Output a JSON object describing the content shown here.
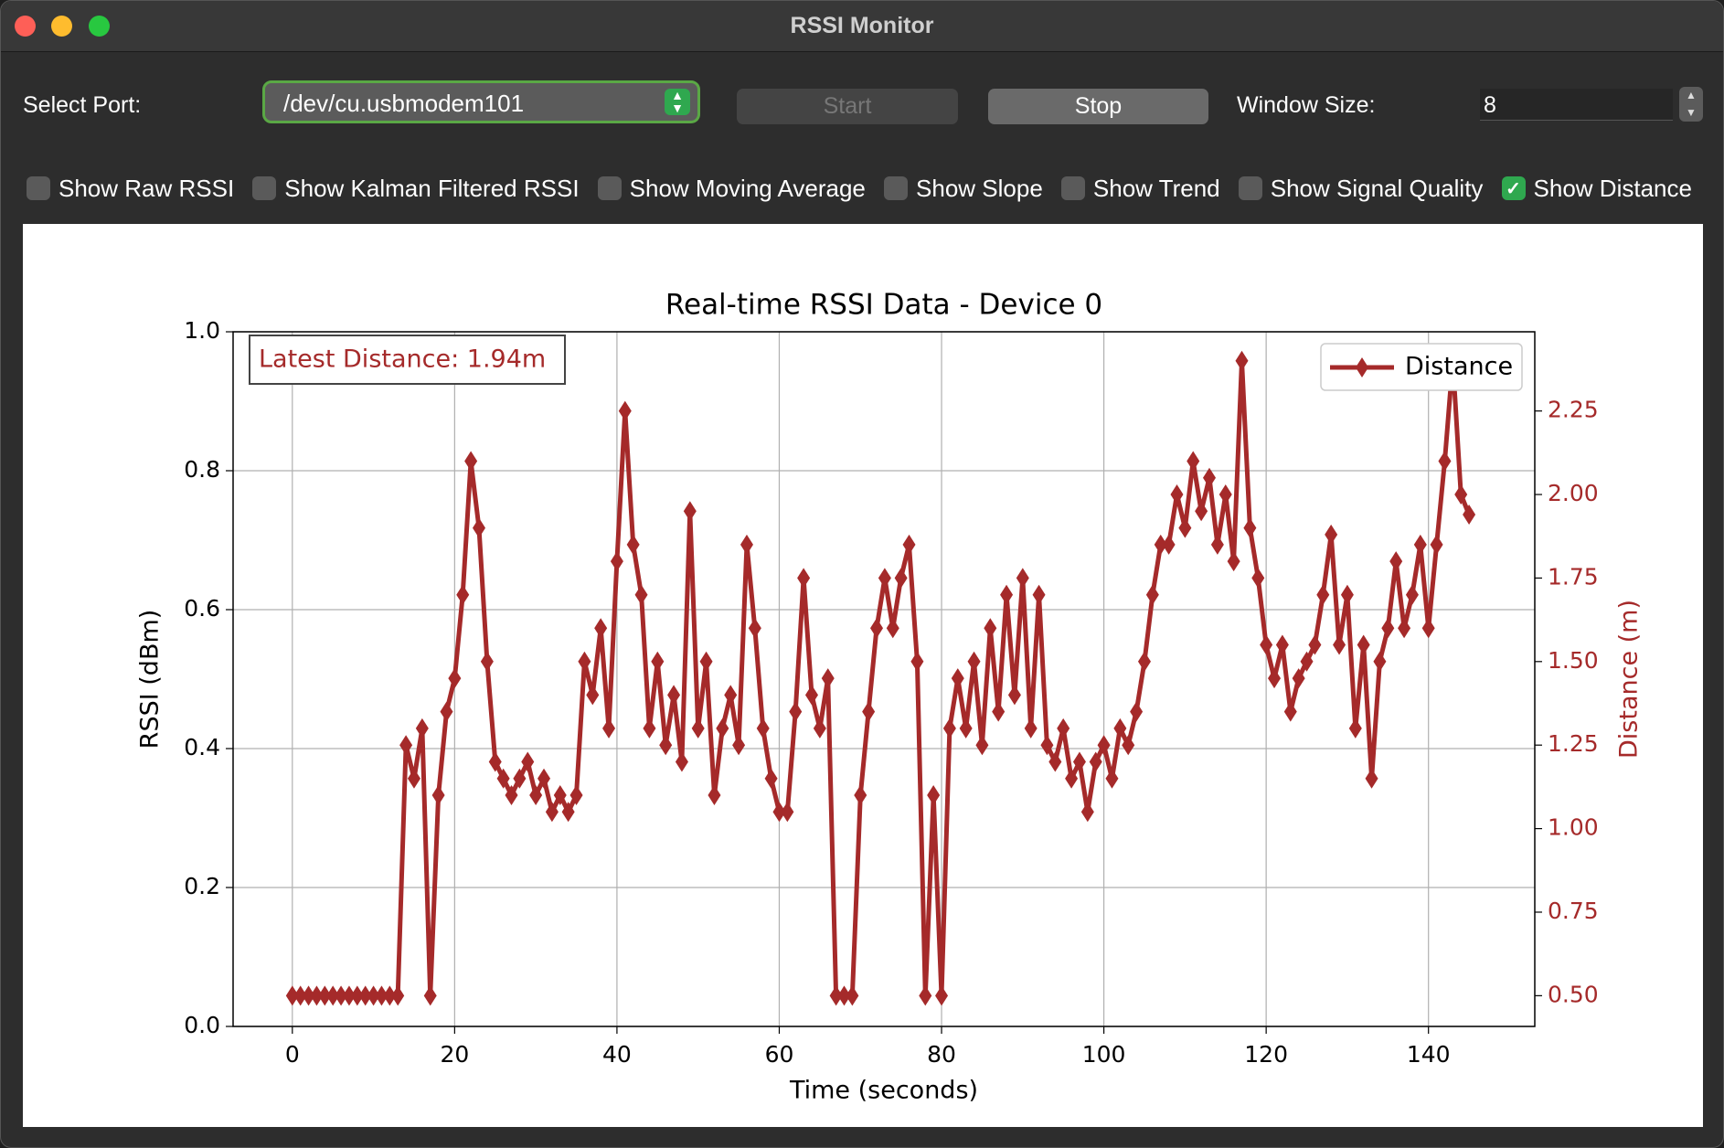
{
  "window": {
    "title": "RSSI Monitor"
  },
  "controls": {
    "port_label": "Select Port:",
    "port_value": "/dev/cu.usbmodem101",
    "start": "Start",
    "stop": "Stop",
    "window_size_label": "Window Size:",
    "window_size": 8
  },
  "checkboxes": [
    {
      "label": "Show Raw RSSI",
      "checked": false
    },
    {
      "label": "Show Kalman Filtered RSSI",
      "checked": false
    },
    {
      "label": "Show Moving Average",
      "checked": false
    },
    {
      "label": "Show Slope",
      "checked": false
    },
    {
      "label": "Show Trend",
      "checked": false
    },
    {
      "label": "Show Signal Quality",
      "checked": false
    },
    {
      "label": "Show Distance",
      "checked": true
    }
  ],
  "chart_data": {
    "type": "line",
    "title": "Real-time RSSI Data - Device 0",
    "xlabel": "Time (seconds)",
    "ylabel": "RSSI (dBm)",
    "y2label": "Distance (m)",
    "annotation": "Latest Distance: 1.94m",
    "grid": true,
    "legend": "upper right",
    "xlim": [
      -7.3,
      153.1
    ],
    "xticks": [
      0,
      20,
      40,
      60,
      80,
      100,
      120,
      140
    ],
    "ylim": [
      0,
      1
    ],
    "yticks": [
      {
        "value": 0,
        "label": "0.0"
      },
      0.2,
      0.4,
      0.6,
      0.8,
      {
        "value": 1,
        "label": "1.0"
      }
    ],
    "y2lim": [
      0.408,
      2.487
    ],
    "y2ticks": [
      {
        "value": 0.5,
        "label": "0.50"
      },
      0.75,
      {
        "value": 1,
        "label": "1.00"
      },
      1.25,
      {
        "value": 1.5,
        "label": "1.50"
      },
      1.75,
      {
        "value": 2,
        "label": "2.00"
      },
      2.25
    ],
    "x": [
      0,
      1,
      2,
      3,
      4,
      5,
      6,
      7,
      8,
      9,
      10,
      11,
      12,
      13,
      14,
      15,
      16,
      17,
      18,
      19,
      20,
      21,
      22,
      23,
      24,
      25,
      26,
      27,
      28,
      29,
      30,
      31,
      32,
      33,
      34,
      35,
      36,
      37,
      38,
      39,
      40,
      41,
      42,
      43,
      44,
      45,
      46,
      47,
      48,
      49,
      50,
      51,
      52,
      53,
      54,
      55,
      56,
      57,
      58,
      59,
      60,
      61,
      62,
      63,
      64,
      65,
      66,
      67,
      68,
      69,
      70,
      71,
      72,
      73,
      74,
      75,
      76,
      77,
      78,
      79,
      80,
      81,
      82,
      83,
      84,
      85,
      86,
      87,
      88,
      89,
      90,
      91,
      92,
      93,
      94,
      95,
      96,
      97,
      98,
      99,
      100,
      101,
      102,
      103,
      104,
      105,
      106,
      107,
      108,
      109,
      110,
      111,
      112,
      113,
      114,
      115,
      116,
      117,
      118,
      119,
      120,
      121,
      122,
      123,
      124,
      125,
      126,
      127,
      128,
      129,
      130,
      131,
      132,
      133,
      134,
      135,
      136,
      137,
      138,
      139,
      140,
      141,
      142,
      143,
      144,
      145
    ],
    "series": [
      {
        "name": "Distance",
        "color": "#a52a2a",
        "axis": "y2",
        "values": [
          0.5,
          0.5,
          0.5,
          0.5,
          0.5,
          0.5,
          0.5,
          0.5,
          0.5,
          0.5,
          0.5,
          0.5,
          0.5,
          0.5,
          1.25,
          1.15,
          1.3,
          0.5,
          1.1,
          1.35,
          1.45,
          1.7,
          2.1,
          1.9,
          1.5,
          1.2,
          1.15,
          1.1,
          1.15,
          1.2,
          1.1,
          1.15,
          1.05,
          1.1,
          1.05,
          1.1,
          1.5,
          1.4,
          1.6,
          1.3,
          1.8,
          2.25,
          1.85,
          1.7,
          1.3,
          1.5,
          1.25,
          1.4,
          1.2,
          1.95,
          1.3,
          1.5,
          1.1,
          1.3,
          1.4,
          1.25,
          1.85,
          1.6,
          1.3,
          1.15,
          1.05,
          1.05,
          1.35,
          1.75,
          1.4,
          1.3,
          1.45,
          0.5,
          0.5,
          0.5,
          1.1,
          1.35,
          1.6,
          1.75,
          1.6,
          1.75,
          1.85,
          1.5,
          0.5,
          1.1,
          0.5,
          1.3,
          1.45,
          1.3,
          1.5,
          1.25,
          1.6,
          1.35,
          1.7,
          1.4,
          1.75,
          1.3,
          1.7,
          1.25,
          1.2,
          1.3,
          1.15,
          1.2,
          1.05,
          1.2,
          1.25,
          1.15,
          1.3,
          1.25,
          1.35,
          1.5,
          1.7,
          1.85,
          1.85,
          2.0,
          1.9,
          2.1,
          1.95,
          2.05,
          1.85,
          2.0,
          1.8,
          2.4,
          1.9,
          1.75,
          1.55,
          1.45,
          1.55,
          1.35,
          1.45,
          1.5,
          1.55,
          1.7,
          1.88,
          1.55,
          1.7,
          1.3,
          1.55,
          1.15,
          1.5,
          1.6,
          1.8,
          1.6,
          1.7,
          1.85,
          1.6,
          1.85,
          2.1,
          2.4,
          2.0,
          1.94
        ]
      }
    ]
  }
}
